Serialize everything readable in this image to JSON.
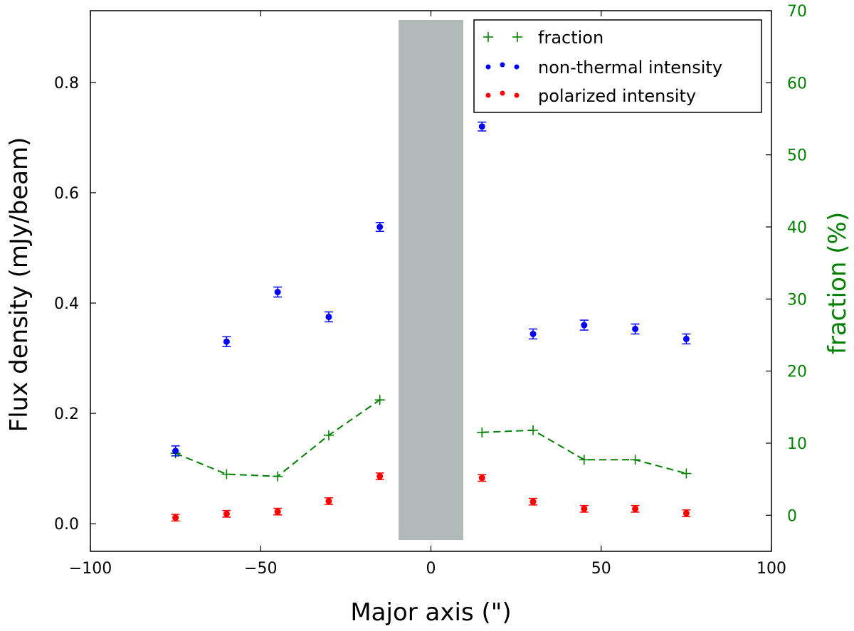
{
  "chart_data": {
    "type": "scatter",
    "xlabel": "Major axis (\")",
    "ylabel_left": "Flux density (mJy/beam)",
    "ylabel_right": "fraction (%)",
    "xlim": [
      -100,
      100
    ],
    "ylim_left": [
      -0.05,
      0.93
    ],
    "ylim_right": [
      -5,
      70
    ],
    "x_ticks": [
      -100,
      -50,
      0,
      50,
      100
    ],
    "x_tick_labels": [
      "−100",
      "−50",
      "0",
      "50",
      "100"
    ],
    "y_left_ticks": [
      0.0,
      0.2,
      0.4,
      0.6,
      0.8
    ],
    "y_left_tick_labels": [
      "0.0",
      "0.2",
      "0.4",
      "0.6",
      "0.8"
    ],
    "y_right_ticks": [
      0,
      10,
      20,
      30,
      40,
      50,
      60,
      70
    ],
    "y_right_tick_labels": [
      "0",
      "10",
      "20",
      "30",
      "40",
      "50",
      "60",
      "70"
    ],
    "grid": false,
    "legend_position": "top-right",
    "masked_region": {
      "x_start": -9.5,
      "x_end": 9.5,
      "color": "#b2b9b9"
    },
    "series": [
      {
        "name": "fraction",
        "axis": "right",
        "color": "#008000",
        "style": "plus-dashed",
        "x": [
          -75,
          -60,
          -45,
          -30,
          -15,
          15,
          30,
          45,
          60,
          75
        ],
        "y": [
          8.6,
          5.7,
          5.4,
          11.1,
          16.0,
          11.5,
          11.8,
          7.7,
          7.7,
          5.8
        ]
      },
      {
        "name": "non-thermal intensity",
        "axis": "left",
        "color": "#0000ff",
        "style": "dot-errorbar",
        "x": [
          -75,
          -60,
          -45,
          -30,
          -15,
          15,
          30,
          45,
          60,
          75
        ],
        "y": [
          0.132,
          0.33,
          0.42,
          0.375,
          0.538,
          0.72,
          0.344,
          0.36,
          0.353,
          0.335
        ],
        "err": [
          0.009,
          0.009,
          0.009,
          0.009,
          0.008,
          0.008,
          0.009,
          0.009,
          0.009,
          0.009
        ]
      },
      {
        "name": "polarized intensity",
        "axis": "left",
        "color": "#ff0000",
        "style": "dot-errorbar",
        "x": [
          -75,
          -60,
          -45,
          -30,
          -15,
          15,
          30,
          45,
          60,
          75
        ],
        "y": [
          0.011,
          0.018,
          0.022,
          0.041,
          0.086,
          0.083,
          0.04,
          0.027,
          0.027,
          0.019
        ],
        "err": [
          0.006,
          0.006,
          0.006,
          0.006,
          0.006,
          0.006,
          0.006,
          0.006,
          0.006,
          0.006
        ]
      }
    ]
  }
}
